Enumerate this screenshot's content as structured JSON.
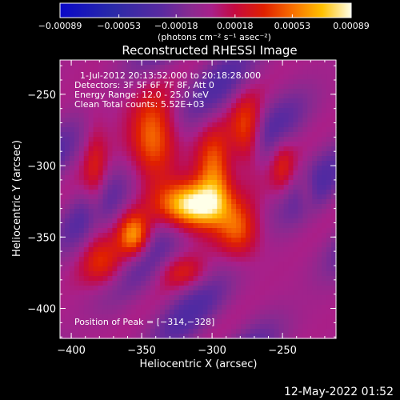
{
  "chart_data": {
    "type": "heatmap",
    "title": "Reconstructed RHESSI Image",
    "xlabel": "Heliocentric X (arcsec)",
    "ylabel": "Heliocentric Y (arcsec)",
    "xlim": [
      -408,
      -212
    ],
    "ylim": [
      -421,
      -226
    ],
    "x_ticks": [
      -400,
      -350,
      -300,
      -250
    ],
    "y_ticks": [
      -400,
      -350,
      -300,
      -250
    ],
    "x_tick_labels": [
      "−400",
      "−350",
      "−300",
      "−250"
    ],
    "y_tick_labels": [
      "−400",
      "−350",
      "−300",
      "−250"
    ],
    "colorbar": {
      "range": [
        -0.00089,
        0.00089
      ],
      "tick_values": [
        -0.00089,
        -0.00053,
        -0.00018,
        0.00018,
        0.00053,
        0.00089
      ],
      "tick_labels": [
        "−0.00089",
        "−0.00053",
        "−0.00018",
        "0.00018",
        "0.00053",
        "0.00089"
      ],
      "unit_label": "(photons cm⁻² s⁻¹ asec⁻²)"
    },
    "annotations": [
      "1-Jul-2012 20:13:52.000 to 20:18:28.000",
      "Detectors: 3F 5F 6F 7F 8F, Att 0",
      "Energy Range: 12.0 - 25.0 keV",
      "Clean     Total counts: 5.52E+03"
    ],
    "peak_label": "Position of Peak = [−314,−328]",
    "peak": [
      -314,
      -328
    ],
    "sources": [
      {
        "x": -314,
        "y": -328,
        "sx": 16,
        "sy": 11,
        "amp": 0.00089
      },
      {
        "x": -298,
        "y": -305,
        "sx": 9,
        "sy": 20,
        "amp": 0.00055
      },
      {
        "x": -275,
        "y": -280,
        "sx": 8,
        "sy": 18,
        "amp": 0.00052
      },
      {
        "x": -342,
        "y": -280,
        "sx": 11,
        "sy": 22,
        "amp": 0.0005
      },
      {
        "x": -355,
        "y": -350,
        "sx": 8,
        "sy": 11,
        "amp": 0.00062
      },
      {
        "x": -375,
        "y": -370,
        "sx": 12,
        "sy": 12,
        "amp": 0.00035
      },
      {
        "x": -282,
        "y": -345,
        "sx": 10,
        "sy": 13,
        "amp": 0.00042
      },
      {
        "x": -320,
        "y": -375,
        "sx": 12,
        "sy": 8,
        "amp": 0.00025
      },
      {
        "x": -383,
        "y": -310,
        "sx": 6,
        "sy": 28,
        "amp": 0.00028
      },
      {
        "x": -250,
        "y": -300,
        "sx": 6,
        "sy": 14,
        "amp": 0.00026
      },
      {
        "x": -233,
        "y": -318,
        "sx": 5,
        "sy": 10,
        "amp": 0.00022
      }
    ]
  },
  "footer": {
    "date": "12-May-2022 01:52"
  }
}
